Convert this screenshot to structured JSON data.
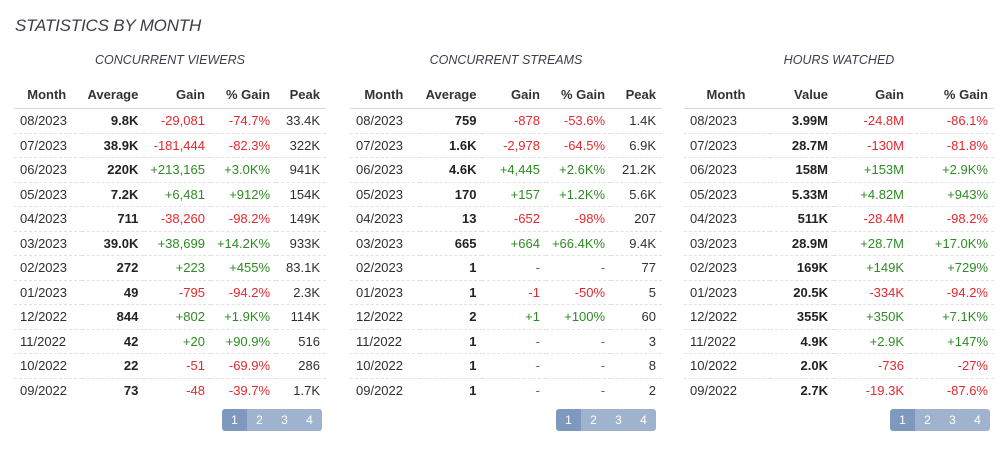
{
  "title": "STATISTICS BY MONTH",
  "colors": {
    "positive": "#2e8b23",
    "negative": "#e3282c",
    "pager": "#9fb3cf",
    "pager_active": "#7f98bd"
  },
  "panels": [
    {
      "title": "CONCURRENT VIEWERS",
      "headers": [
        "Month",
        "Average",
        "Gain",
        "% Gain",
        "Peak"
      ],
      "rows": [
        [
          "08/2023",
          "9.8K",
          "-29,081",
          "-74.7%",
          "33.4K"
        ],
        [
          "07/2023",
          "38.9K",
          "-181,444",
          "-82.3%",
          "322K"
        ],
        [
          "06/2023",
          "220K",
          "+213,165",
          "+3.0K%",
          "941K"
        ],
        [
          "05/2023",
          "7.2K",
          "+6,481",
          "+912%",
          "154K"
        ],
        [
          "04/2023",
          "711",
          "-38,260",
          "-98.2%",
          "149K"
        ],
        [
          "03/2023",
          "39.0K",
          "+38,699",
          "+14.2K%",
          "933K"
        ],
        [
          "02/2023",
          "272",
          "+223",
          "+455%",
          "83.1K"
        ],
        [
          "01/2023",
          "49",
          "-795",
          "-94.2%",
          "2.3K"
        ],
        [
          "12/2022",
          "844",
          "+802",
          "+1.9K%",
          "114K"
        ],
        [
          "11/2022",
          "42",
          "+20",
          "+90.9%",
          "516"
        ],
        [
          "10/2022",
          "22",
          "-51",
          "-69.9%",
          "286"
        ],
        [
          "09/2022",
          "73",
          "-48",
          "-39.7%",
          "1.7K"
        ]
      ],
      "pages": [
        "1",
        "2",
        "3",
        "4"
      ]
    },
    {
      "title": "CONCURRENT STREAMS",
      "headers": [
        "Month",
        "Average",
        "Gain",
        "% Gain",
        "Peak"
      ],
      "rows": [
        [
          "08/2023",
          "759",
          "-878",
          "-53.6%",
          "1.4K"
        ],
        [
          "07/2023",
          "1.6K",
          "-2,978",
          "-64.5%",
          "6.9K"
        ],
        [
          "06/2023",
          "4.6K",
          "+4,445",
          "+2.6K%",
          "21.2K"
        ],
        [
          "05/2023",
          "170",
          "+157",
          "+1.2K%",
          "5.6K"
        ],
        [
          "04/2023",
          "13",
          "-652",
          "-98%",
          "207"
        ],
        [
          "03/2023",
          "665",
          "+664",
          "+66.4K%",
          "9.4K"
        ],
        [
          "02/2023",
          "1",
          "-",
          "-",
          "77"
        ],
        [
          "01/2023",
          "1",
          "-1",
          "-50%",
          "5"
        ],
        [
          "12/2022",
          "2",
          "+1",
          "+100%",
          "60"
        ],
        [
          "11/2022",
          "1",
          "-",
          "-",
          "3"
        ],
        [
          "10/2022",
          "1",
          "-",
          "-",
          "8"
        ],
        [
          "09/2022",
          "1",
          "-",
          "-",
          "2"
        ]
      ],
      "pages": [
        "1",
        "2",
        "3",
        "4"
      ]
    },
    {
      "title": "HOURS WATCHED",
      "headers": [
        "Month",
        "Value",
        "Gain",
        "% Gain"
      ],
      "rows": [
        [
          "08/2023",
          "3.99M",
          "-24.8M",
          "-86.1%"
        ],
        [
          "07/2023",
          "28.7M",
          "-130M",
          "-81.8%"
        ],
        [
          "06/2023",
          "158M",
          "+153M",
          "+2.9K%"
        ],
        [
          "05/2023",
          "5.33M",
          "+4.82M",
          "+943%"
        ],
        [
          "04/2023",
          "511K",
          "-28.4M",
          "-98.2%"
        ],
        [
          "03/2023",
          "28.9M",
          "+28.7M",
          "+17.0K%"
        ],
        [
          "02/2023",
          "169K",
          "+149K",
          "+729%"
        ],
        [
          "01/2023",
          "20.5K",
          "-334K",
          "-94.2%"
        ],
        [
          "12/2022",
          "355K",
          "+350K",
          "+7.1K%"
        ],
        [
          "11/2022",
          "4.9K",
          "+2.9K",
          "+147%"
        ],
        [
          "10/2022",
          "2.0K",
          "-736",
          "-27%"
        ],
        [
          "09/2022",
          "2.7K",
          "-19.3K",
          "-87.6%"
        ]
      ],
      "pages": [
        "1",
        "2",
        "3",
        "4"
      ]
    }
  ]
}
